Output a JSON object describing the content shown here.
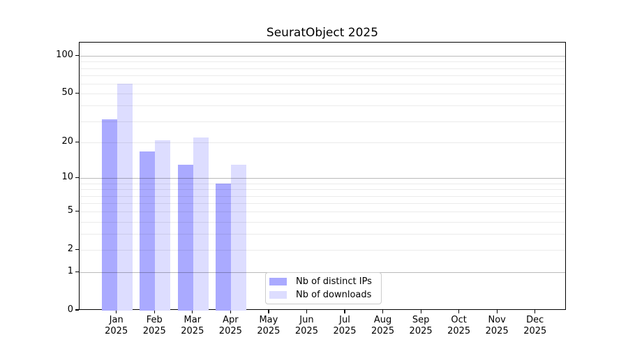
{
  "title": "SeuratObject 2025",
  "chart_data": {
    "type": "bar",
    "title": "SeuratObject 2025",
    "yscale": "log10(1+x)",
    "ylim": [
      0,
      131
    ],
    "grid": true,
    "legend_position": "bottom-center",
    "x_categories": [
      "Jan",
      "Feb",
      "Mar",
      "Apr",
      "May",
      "Jun",
      "Jul",
      "Aug",
      "Sep",
      "Oct",
      "Nov",
      "Dec"
    ],
    "x_year": "2025",
    "y_tick_values": [
      0,
      1,
      2,
      5,
      10,
      20,
      50,
      100
    ],
    "y_major_gridlines": [
      1,
      10,
      100
    ],
    "y_minor_gridlines": [
      3,
      4,
      6,
      7,
      8,
      9,
      30,
      40,
      60,
      70,
      80,
      90
    ],
    "series": [
      {
        "name": "Nb of distinct IPs",
        "color": "#aaaaff",
        "values": [
          31,
          17,
          13,
          9,
          null,
          null,
          null,
          null,
          null,
          null,
          null,
          null
        ]
      },
      {
        "name": "Nb of downloads",
        "color": "#ddddff",
        "values": [
          60,
          21,
          22,
          13,
          null,
          null,
          null,
          null,
          null,
          null,
          null,
          null
        ]
      }
    ]
  },
  "colors": {
    "background": "#ffffff",
    "bar_distinct_ips": "#aaaaff",
    "bar_downloads": "#ddddff",
    "axis": "#000000",
    "gridline_major": "#bbbbbb",
    "gridline_minor": "#ececec",
    "legend_border": "#cccccc",
    "text": "#000000"
  }
}
